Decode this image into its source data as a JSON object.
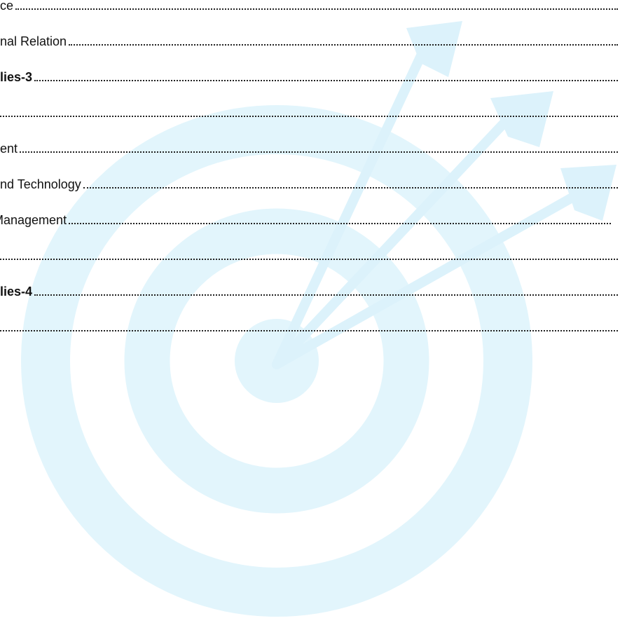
{
  "toc": {
    "entries": [
      {
        "text": "ce",
        "bold": false
      },
      {
        "text": "nal Relation",
        "bold": false
      },
      {
        "text": "lies-3",
        "bold": true
      },
      {
        "bold": false
      },
      {
        "text": "ent",
        "bold": false
      },
      {
        "text": "nd Technology",
        "bold": false
      },
      {
        "text": "Management",
        "bold": false,
        "clipped": true
      },
      {
        "bold": false
      },
      {
        "text": "lies-4",
        "bold": true
      },
      {
        "bold": false
      }
    ]
  }
}
